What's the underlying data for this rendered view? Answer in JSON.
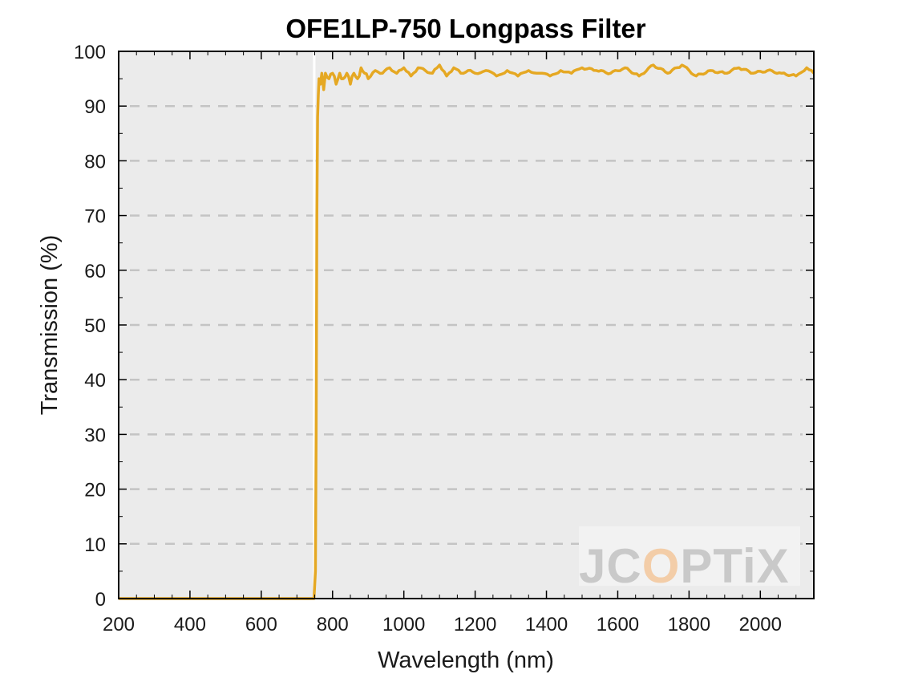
{
  "chart_data": {
    "type": "line",
    "title": "OFE1LP-750 Longpass Filter",
    "xlabel": "Wavelength (nm)",
    "ylabel": "Transmission (%)",
    "xlim": [
      200,
      2150
    ],
    "ylim": [
      0,
      100
    ],
    "x_ticks": [
      200,
      400,
      600,
      800,
      1000,
      1200,
      1400,
      1600,
      1800,
      2000
    ],
    "y_ticks": [
      0,
      10,
      20,
      30,
      40,
      50,
      60,
      70,
      80,
      90,
      100
    ],
    "grid": "horizontal dashed",
    "background_color": "#ebebeb",
    "line_color": "#e5a823",
    "series": [
      {
        "x": [
          200,
          300,
          400,
          500,
          600,
          700,
          748,
          752,
          754,
          756,
          758,
          760,
          762,
          766,
          770,
          775,
          780,
          790,
          800,
          810,
          820,
          830,
          840,
          850,
          860,
          870,
          880,
          890,
          900,
          920,
          940,
          960,
          980,
          1000,
          1020,
          1040,
          1060,
          1080,
          1100,
          1120,
          1140,
          1160,
          1180,
          1200,
          1230,
          1260,
          1290,
          1320,
          1350,
          1380,
          1410,
          1440,
          1470,
          1500,
          1540,
          1580,
          1620,
          1660,
          1700,
          1740,
          1780,
          1820,
          1860,
          1900,
          1940,
          1980,
          2020,
          2060,
          2100,
          2130,
          2150
        ],
        "y": [
          0,
          0,
          0,
          0,
          0,
          0,
          0,
          5,
          30,
          70,
          88,
          92,
          95,
          94,
          96,
          93,
          96,
          95,
          96,
          94,
          96,
          95,
          96,
          94,
          96,
          95,
          97,
          96,
          95,
          96.5,
          96,
          97,
          96,
          97,
          95.5,
          97,
          96.5,
          96,
          97.5,
          95.5,
          97,
          96,
          96.5,
          96,
          96.5,
          95.5,
          96.5,
          95.5,
          96.5,
          96,
          95.5,
          96.5,
          96,
          97,
          96.5,
          96,
          97,
          95.5,
          97.5,
          96,
          97.5,
          95.5,
          96.5,
          96,
          97,
          96,
          96.5,
          96,
          95.5,
          97,
          96
        ]
      }
    ]
  },
  "watermark": {
    "part1": "JC",
    "part2": "O",
    "part3": "PTiX",
    "accent_color": "#f3cda8"
  }
}
